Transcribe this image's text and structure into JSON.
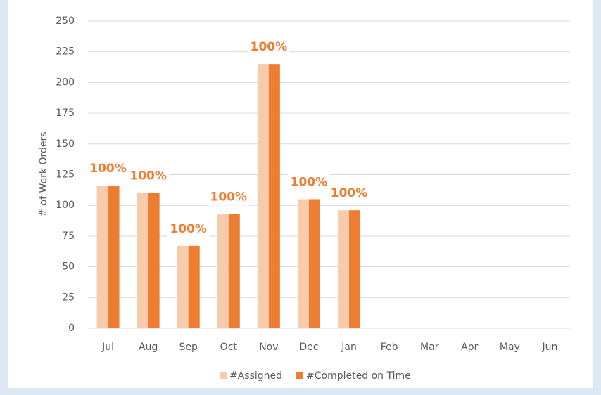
{
  "chart_data": {
    "type": "bar",
    "ylabel": "# of Work Orders",
    "categories": [
      "Jul",
      "Aug",
      "Sep",
      "Oct",
      "Nov",
      "Dec",
      "Jan",
      "Feb",
      "Mar",
      "Apr",
      "May",
      "Jun"
    ],
    "series": [
      {
        "name": "#Assigned",
        "color": "#f8cbad",
        "values": [
          116,
          110,
          67,
          93,
          215,
          105,
          96,
          null,
          null,
          null,
          null,
          null
        ]
      },
      {
        "name": "#Completed on Time",
        "color": "#ed7d31",
        "values": [
          116,
          110,
          67,
          93,
          215,
          105,
          96,
          null,
          null,
          null,
          null,
          null
        ]
      }
    ],
    "percent_on_time": {
      "color": "#ed7d31",
      "values": [
        100,
        100,
        100,
        100,
        100,
        100,
        100,
        null,
        null,
        null,
        null,
        null
      ],
      "value_labels": [
        "100%",
        "100%",
        "100%",
        "100%",
        "100%",
        "100%",
        "100%",
        null,
        null,
        null,
        null,
        null
      ]
    },
    "ylim": [
      0,
      250
    ],
    "yticks": [
      0,
      25,
      50,
      75,
      100,
      125,
      150,
      175,
      200,
      225,
      250
    ],
    "grid": true,
    "legend": "bottom"
  }
}
